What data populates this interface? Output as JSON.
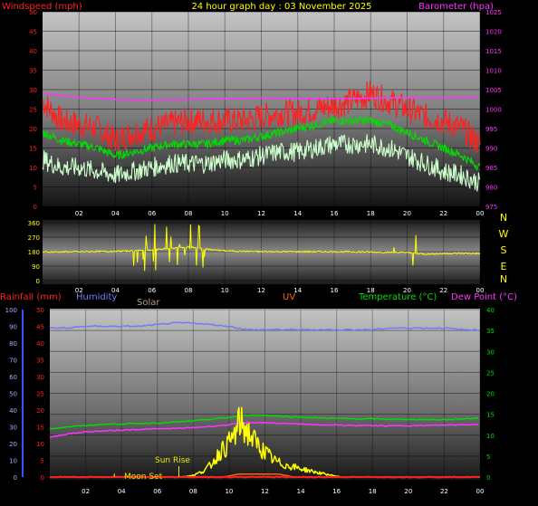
{
  "header": {
    "title": "24 hour graph day : 03 November 2025",
    "left_label": "Windspeed (mph)",
    "right_label": "Barometer (hpa)"
  },
  "colors": {
    "red": "#ff2020",
    "magenta": "#ff33ff",
    "yellow": "#ffff00",
    "green": "#00dd00",
    "light_green": "#ccffcc",
    "blue": "#7777ff",
    "orange": "#ff6600",
    "grey_label": "#b0a080"
  },
  "chart_data": [
    {
      "type": "line",
      "title": "24 hour graph day : 03 November 2025",
      "ylabel": "Windspeed (mph)",
      "ylabel_right": "Barometer (hpa)",
      "x_ticks": [
        "02",
        "04",
        "06",
        "08",
        "10",
        "12",
        "14",
        "16",
        "18",
        "20",
        "22",
        "00"
      ],
      "y_ticks_left": [
        0,
        5,
        10,
        15,
        20,
        25,
        30,
        35,
        40,
        45,
        50
      ],
      "y_ticks_right": [
        975,
        980,
        985,
        990,
        995,
        1000,
        1005,
        1010,
        1015,
        1020,
        1025
      ],
      "ylim": [
        0,
        50
      ],
      "ylim_right": [
        975,
        1025
      ],
      "grid": true,
      "x_hours": [
        0,
        1,
        2,
        3,
        4,
        5,
        6,
        7,
        8,
        9,
        10,
        11,
        12,
        13,
        14,
        15,
        16,
        17,
        18,
        19,
        20,
        21,
        22,
        23,
        24
      ],
      "series": [
        {
          "name": "Windspeed (mph)",
          "color": "#ff2020",
          "values": [
            27,
            22,
            21,
            20,
            17,
            19,
            20,
            21,
            22,
            22,
            22,
            22,
            23,
            24,
            24,
            25,
            26,
            27,
            29,
            27,
            25,
            23,
            22,
            20,
            16
          ]
        },
        {
          "name": "",
          "color": "#00dd00",
          "values": [
            19,
            17,
            16,
            15,
            13,
            14,
            15,
            16,
            16,
            16,
            17,
            17,
            18,
            19,
            20,
            21,
            22,
            22,
            22,
            21,
            19,
            17,
            15,
            13,
            10
          ]
        },
        {
          "name": "",
          "color": "#ccffcc",
          "values": [
            12,
            10,
            10,
            9,
            8,
            9,
            10,
            11,
            11,
            11,
            12,
            12,
            13,
            14,
            14,
            15,
            16,
            16,
            16,
            15,
            13,
            11,
            9,
            8,
            6
          ]
        },
        {
          "name": "Barometer (hpa)",
          "color": "#ff33ff",
          "axis": "right",
          "values": [
            1004,
            1003.5,
            1003,
            1002.7,
            1002.5,
            1002.3,
            1002.3,
            1002.4,
            1002.5,
            1002.6,
            1002.7,
            1002.7,
            1002.8,
            1002.8,
            1002.8,
            1002.7,
            1002.7,
            1002.7,
            1002.8,
            1002.9,
            1002.9,
            1002.9,
            1002.9,
            1003,
            1003
          ]
        }
      ]
    },
    {
      "type": "line",
      "labels_right": [
        "N",
        "W",
        "S",
        "E",
        "N"
      ],
      "y_ticks": [
        0,
        90,
        180,
        270,
        360
      ],
      "ylim": [
        0,
        360
      ],
      "x_ticks": [
        "02",
        "04",
        "06",
        "08",
        "10",
        "12",
        "14",
        "16",
        "18",
        "20",
        "22",
        "00"
      ],
      "series": [
        {
          "name": "",
          "color": "#ffff00",
          "x_hours": [
            0,
            2,
            4,
            5,
            6,
            7,
            8,
            9,
            10,
            11,
            12,
            14,
            16,
            18,
            19,
            20,
            21,
            22,
            23,
            24
          ],
          "values": [
            178,
            180,
            182,
            185,
            190,
            200,
            210,
            195,
            185,
            182,
            180,
            180,
            180,
            178,
            176,
            175,
            165,
            168,
            170,
            168
          ]
        }
      ]
    },
    {
      "type": "line",
      "legend": [
        "Rainfall (mm)",
        "Humidity",
        "Solar",
        "UV",
        "Temperature (°C)",
        "Dew Point (°C)"
      ],
      "y_ticks_humidity": [
        0,
        10,
        20,
        30,
        40,
        50,
        60,
        70,
        80,
        90,
        100
      ],
      "y_ticks_rain": [
        0,
        5,
        10,
        15,
        20,
        25,
        30,
        35,
        40,
        45,
        50
      ],
      "y_ticks_temp": [
        0,
        5,
        10,
        15,
        20,
        25,
        30,
        35,
        40
      ],
      "ylim_temp": [
        0,
        40
      ],
      "ylim_humidity": [
        0,
        100
      ],
      "x_ticks": [
        "02",
        "04",
        "06",
        "08",
        "10",
        "12",
        "14",
        "16",
        "18",
        "20",
        "22",
        "00"
      ],
      "annotations": [
        "Sun Rise",
        "Moon Set"
      ],
      "x_hours": [
        0,
        1,
        2,
        3,
        4,
        5,
        6,
        7,
        8,
        9,
        10,
        11,
        12,
        13,
        14,
        15,
        16,
        17,
        18,
        19,
        20,
        21,
        22,
        23,
        24
      ],
      "series": [
        {
          "name": "Humidity",
          "color": "#7777ff",
          "axis": "humidity",
          "values": [
            89,
            89,
            90,
            90,
            90,
            90,
            91,
            92,
            92,
            91,
            90,
            88,
            88,
            88,
            88,
            88,
            88,
            88,
            88,
            89,
            89,
            89,
            89,
            88,
            88
          ]
        },
        {
          "name": "Temperature (°C)",
          "color": "#00dd00",
          "axis": "temp",
          "values": [
            11.5,
            12,
            12.3,
            12.6,
            12.7,
            12.8,
            12.9,
            13.1,
            13.4,
            13.8,
            14.2,
            14.8,
            14.8,
            14.5,
            14.3,
            14.1,
            14.0,
            13.9,
            13.9,
            13.8,
            13.8,
            13.7,
            13.7,
            13.9,
            14.1
          ]
        },
        {
          "name": "Dew Point (°C)",
          "color": "#ff33ff",
          "axis": "temp",
          "values": [
            9.5,
            10.3,
            10.8,
            11.0,
            11.2,
            11.4,
            11.5,
            11.6,
            11.8,
            12.1,
            12.5,
            13.0,
            13.0,
            12.8,
            12.6,
            12.5,
            12.4,
            12.3,
            12.3,
            12.2,
            12.3,
            12.3,
            12.4,
            12.5,
            12.6
          ]
        },
        {
          "name": "Solar",
          "color": "#ffff00",
          "axis": "temp",
          "x_hours": [
            7.3,
            8,
            8.6,
            9,
            9.5,
            10,
            10.3,
            10.6,
            11,
            11.5,
            12,
            12.5,
            13,
            13.5,
            14,
            14.5,
            15,
            15.5,
            16,
            16.3
          ],
          "values": [
            0,
            0.4,
            1.5,
            3,
            6,
            8,
            10,
            13,
            11,
            8,
            6,
            4,
            3,
            2.5,
            2,
            1.5,
            1,
            0.6,
            0.2,
            0
          ]
        },
        {
          "name": "UV",
          "color": "#ff6600",
          "axis": "temp",
          "x_hours": [
            0,
            9.7,
            10.5,
            12.8,
            13.6,
            24
          ],
          "values": [
            0,
            0,
            0.7,
            0.7,
            0,
            0
          ]
        },
        {
          "name": "Rainfall (mm)",
          "color": "#ff2020",
          "axis": "rain",
          "values": [
            0,
            0,
            0,
            0,
            0,
            0,
            0,
            0,
            0,
            0,
            0,
            0,
            0,
            0,
            0,
            0,
            0,
            0,
            0,
            0,
            0,
            0,
            0,
            0,
            0
          ]
        }
      ]
    }
  ]
}
